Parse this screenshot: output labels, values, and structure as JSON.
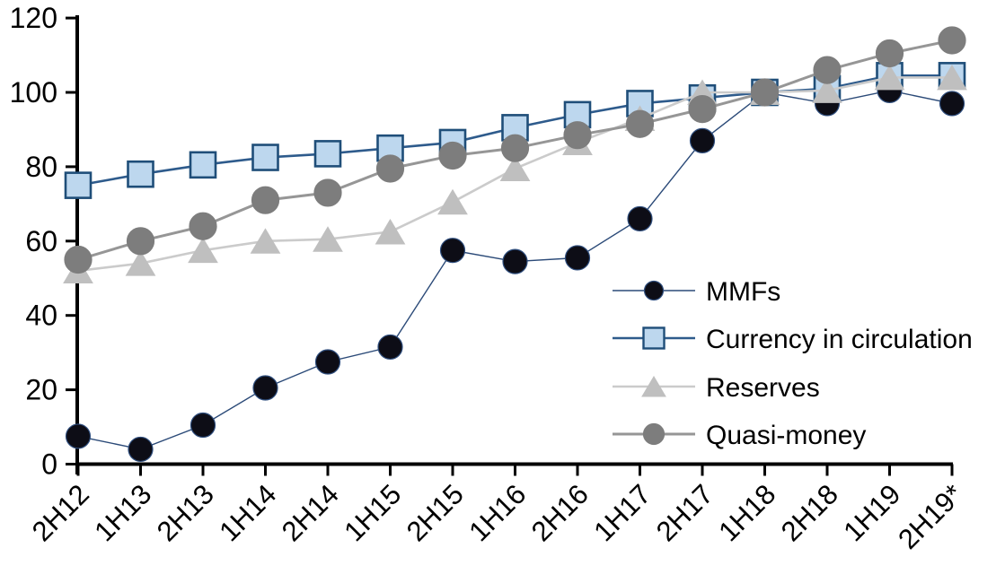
{
  "chart_data": {
    "type": "line",
    "title": "",
    "xlabel": "",
    "ylabel": "",
    "categories": [
      "2H12",
      "1H13",
      "2H13",
      "1H14",
      "2H14",
      "1H15",
      "2H15",
      "1H16",
      "2H16",
      "1H17",
      "2H17",
      "1H18",
      "2H18",
      "1H19",
      "2H19*"
    ],
    "series": [
      {
        "name": "MMFs",
        "marker": "circle",
        "line_color": "#2b4a78",
        "line_width": 1.4,
        "marker_fill": "#0d0d16",
        "marker_stroke": "#2f4e7e",
        "values": [
          7.5,
          4,
          10.5,
          20.5,
          27.5,
          31.5,
          57.5,
          54.5,
          55.5,
          66,
          87,
          100,
          97,
          100.5,
          97
        ]
      },
      {
        "name": "Currency in circulation",
        "marker": "square",
        "line_color": "#2e5b8c",
        "line_width": 2.6,
        "marker_fill": "#bdd7ee",
        "marker_stroke": "#1f4e79",
        "values": [
          75,
          78,
          80.5,
          82.5,
          83.5,
          85,
          86.5,
          90.5,
          94,
          97,
          98.5,
          100,
          101,
          104.5,
          104.5
        ]
      },
      {
        "name": "Reserves",
        "marker": "triangle",
        "line_color": "#cbcbcb",
        "line_width": 2.6,
        "marker_fill": "#bfbfbf",
        "marker_stroke": "#bfbfbf",
        "values": [
          52,
          54,
          57.5,
          60,
          60.5,
          62.5,
          70.5,
          79.5,
          86.5,
          93,
          100,
          100,
          100.5,
          104,
          104
        ]
      },
      {
        "name": "Quasi-money",
        "marker": "circle",
        "line_color": "#969696",
        "line_width": 3,
        "marker_fill": "#7d7d7d",
        "marker_stroke": "#7d7d7d",
        "values": [
          55,
          60,
          64,
          71,
          73,
          79.5,
          83,
          85,
          88.5,
          91.5,
          95.5,
          100,
          106,
          110.5,
          114
        ]
      }
    ],
    "ylim": [
      0,
      120
    ],
    "yticks": [
      0,
      20,
      40,
      60,
      80,
      100,
      120
    ],
    "grid": false,
    "legend_position": "center-right",
    "legend_labels": [
      "MMFs",
      "Currency in circulation",
      "Reserves",
      "Quasi-money"
    ],
    "axis_color": "#000000",
    "background_color": "#ffffff",
    "x_tick_rotation_deg": 45,
    "index_note": "all series equal 100 at 1H18"
  }
}
